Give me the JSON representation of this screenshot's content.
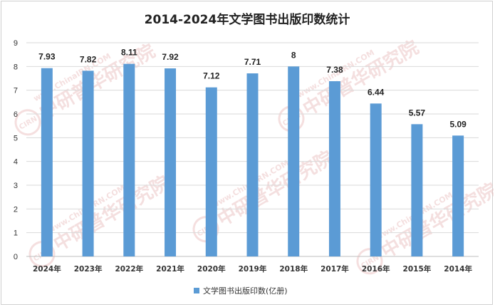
{
  "chart_data": {
    "type": "bar",
    "title": "2014-2024年文学图书出版印数统计",
    "categories": [
      "2024年",
      "2023年",
      "2022年",
      "2021年",
      "2020年",
      "2019年",
      "2018年",
      "2017年",
      "2016年",
      "2015年",
      "2014年"
    ],
    "series": [
      {
        "name": "文学图书出版印数(亿册)",
        "values": [
          7.93,
          7.82,
          8.11,
          7.92,
          7.12,
          7.71,
          8,
          7.38,
          6.44,
          5.57,
          5.09
        ],
        "labels": [
          "7.93",
          "7.82",
          "8.11",
          "7.92",
          "7.12",
          "7.71",
          "8",
          "7.38",
          "6.44",
          "5.57",
          "5.09"
        ]
      }
    ],
    "ylim": [
      0,
      9
    ],
    "yticks": [
      0,
      1,
      2,
      3,
      4,
      5,
      6,
      7,
      8,
      9
    ],
    "grid": true,
    "legend": "bottom",
    "bar_color": "#5b9bd5"
  },
  "watermark": {
    "brand": "中研普华研究院",
    "site": "www.ChinaIRN.COM",
    "logo": "CIRN"
  }
}
